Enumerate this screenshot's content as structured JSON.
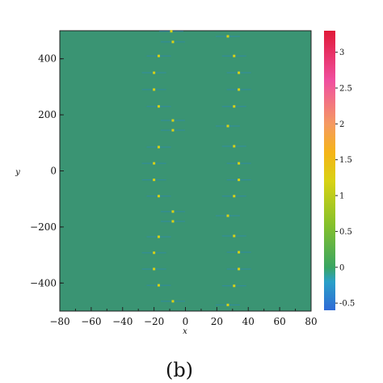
{
  "caption": "(b)",
  "chart_data": {
    "type": "heatmap",
    "xlabel": "x",
    "ylabel": "y",
    "xlim": [
      -80,
      80
    ],
    "ylim": [
      -500,
      500
    ],
    "xticks": [
      -80,
      -60,
      -40,
      -20,
      0,
      20,
      40,
      60,
      80
    ],
    "xtick_labels": [
      "−80",
      "−60",
      "−40",
      "−20",
      "0",
      "20",
      "40",
      "60",
      "80"
    ],
    "yticks": [
      400,
      200,
      0,
      -200,
      -400
    ],
    "ytick_labels": [
      "400",
      "200",
      "0",
      "−200",
      "−400"
    ],
    "background_value": 0,
    "background_color": "#3a9473",
    "colorbar": {
      "min": -0.6,
      "max": 3.3,
      "ticks": [
        3,
        2.5,
        2,
        1.5,
        1,
        0.5,
        0,
        -0.5
      ],
      "tick_labels": [
        "3",
        "2.5",
        "2",
        "1.5",
        "1",
        "0.5",
        "0",
        "-0.5"
      ],
      "stops": [
        {
          "v": -0.6,
          "color": "#2f6bd6"
        },
        {
          "v": -0.2,
          "color": "#2aa0c8"
        },
        {
          "v": 0.0,
          "color": "#3aa562"
        },
        {
          "v": 0.6,
          "color": "#86c12b"
        },
        {
          "v": 1.2,
          "color": "#d8d214"
        },
        {
          "v": 1.6,
          "color": "#f5b418"
        },
        {
          "v": 2.0,
          "color": "#f59a62"
        },
        {
          "v": 2.6,
          "color": "#f050a0"
        },
        {
          "v": 3.3,
          "color": "#e01a38"
        }
      ]
    },
    "peaks": [
      {
        "x": -9,
        "y": 498,
        "value": 1.3
      },
      {
        "x": -8,
        "y": 460,
        "value": 1.4
      },
      {
        "x": -17,
        "y": 410,
        "value": 1.4
      },
      {
        "x": -20,
        "y": 350,
        "value": 1.2
      },
      {
        "x": -20,
        "y": 290,
        "value": 1.2
      },
      {
        "x": -17,
        "y": 230,
        "value": 1.3
      },
      {
        "x": -8,
        "y": 180,
        "value": 1.4
      },
      {
        "x": -8,
        "y": 145,
        "value": 1.3
      },
      {
        "x": -17,
        "y": 85,
        "value": 1.3
      },
      {
        "x": -20,
        "y": 27,
        "value": 1.2
      },
      {
        "x": -20,
        "y": -32,
        "value": 1.2
      },
      {
        "x": -17,
        "y": -90,
        "value": 1.3
      },
      {
        "x": -8,
        "y": -145,
        "value": 1.4
      },
      {
        "x": -8,
        "y": -180,
        "value": 1.3
      },
      {
        "x": -17,
        "y": -235,
        "value": 1.3
      },
      {
        "x": -20,
        "y": -292,
        "value": 1.2
      },
      {
        "x": -20,
        "y": -350,
        "value": 1.2
      },
      {
        "x": -17,
        "y": -408,
        "value": 1.4
      },
      {
        "x": -8,
        "y": -465,
        "value": 1.4
      },
      {
        "x": 27,
        "y": 480,
        "value": 1.3
      },
      {
        "x": 31,
        "y": 410,
        "value": 1.4
      },
      {
        "x": 34,
        "y": 350,
        "value": 1.2
      },
      {
        "x": 34,
        "y": 290,
        "value": 1.2
      },
      {
        "x": 31,
        "y": 230,
        "value": 1.3
      },
      {
        "x": 27,
        "y": 160,
        "value": 1.4
      },
      {
        "x": 31,
        "y": 88,
        "value": 1.3
      },
      {
        "x": 34,
        "y": 27,
        "value": 1.2
      },
      {
        "x": 34,
        "y": -32,
        "value": 1.2
      },
      {
        "x": 31,
        "y": -90,
        "value": 1.3
      },
      {
        "x": 27,
        "y": -160,
        "value": 1.4
      },
      {
        "x": 31,
        "y": -232,
        "value": 1.3
      },
      {
        "x": 34,
        "y": -290,
        "value": 1.2
      },
      {
        "x": 34,
        "y": -350,
        "value": 1.2
      },
      {
        "x": 31,
        "y": -410,
        "value": 1.4
      },
      {
        "x": 27,
        "y": -478,
        "value": 1.3
      }
    ]
  }
}
